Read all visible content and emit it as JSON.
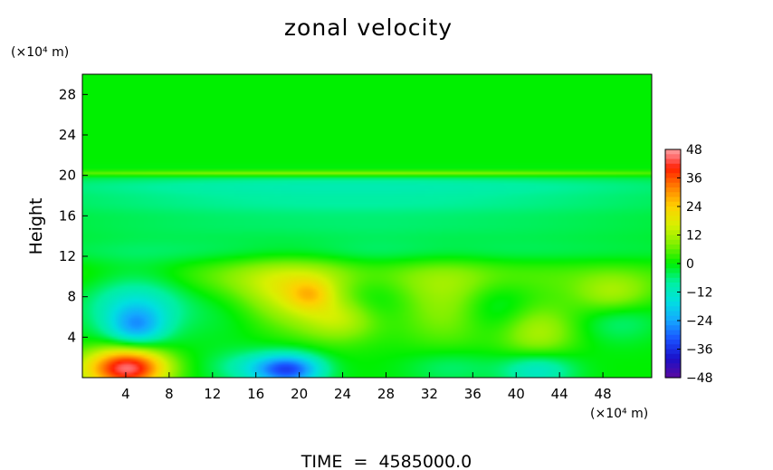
{
  "chart_data": {
    "type": "heatmap",
    "title": "zonal velocity",
    "xlabel": "",
    "ylabel": "Height",
    "x_unit_label": "(×10⁴ m)",
    "y_unit_label": "(×10⁴ m)",
    "footer": "TIME  =  4585000.0",
    "xlim": [
      0,
      52.5
    ],
    "ylim": [
      0,
      30
    ],
    "x_ticks": [
      4,
      8,
      12,
      16,
      20,
      24,
      28,
      32,
      36,
      40,
      44,
      48
    ],
    "y_ticks": [
      4,
      8,
      12,
      16,
      20,
      24,
      28
    ],
    "colorbar": {
      "range": [
        -48,
        48
      ],
      "ticks": [
        48,
        36,
        24,
        12,
        0,
        -12,
        -24,
        -36,
        -48
      ],
      "stops": [
        {
          "value": -48,
          "color": "#5a0aa0"
        },
        {
          "value": -40,
          "color": "#1a10c8"
        },
        {
          "value": -32,
          "color": "#1a50ff"
        },
        {
          "value": -24,
          "color": "#14a8ff"
        },
        {
          "value": -16,
          "color": "#00e0e0"
        },
        {
          "value": -8,
          "color": "#00f0a0"
        },
        {
          "value": 0,
          "color": "#00f000"
        },
        {
          "value": 8,
          "color": "#80f000"
        },
        {
          "value": 16,
          "color": "#d8f000"
        },
        {
          "value": 24,
          "color": "#ffd000"
        },
        {
          "value": 32,
          "color": "#ff8000"
        },
        {
          "value": 40,
          "color": "#ff2000"
        },
        {
          "value": 44,
          "color": "#ff6060"
        },
        {
          "value": 48,
          "color": "#ffa0a0"
        }
      ]
    },
    "field_features": [
      {
        "x": 4.5,
        "y": 1.0,
        "value": 34,
        "sx": 2.4,
        "sy": 1.4
      },
      {
        "x": 2.5,
        "y": 0.8,
        "value": 14,
        "sx": 3.0,
        "sy": 1.5
      },
      {
        "x": 19.0,
        "y": 0.8,
        "value": -32,
        "sx": 2.2,
        "sy": 1.1
      },
      {
        "x": 15.0,
        "y": 1.0,
        "value": -8,
        "sx": 2.5,
        "sy": 1.2
      },
      {
        "x": 42.0,
        "y": 0.8,
        "value": -14,
        "sx": 2.4,
        "sy": 1.2
      },
      {
        "x": 34.0,
        "y": 1.0,
        "value": -6,
        "sx": 3.0,
        "sy": 1.2
      },
      {
        "x": 5.0,
        "y": 7.5,
        "value": -14,
        "sx": 3.5,
        "sy": 2.4
      },
      {
        "x": 5.0,
        "y": 5.0,
        "value": -18,
        "sx": 1.8,
        "sy": 1.4
      },
      {
        "x": 14.0,
        "y": 7.0,
        "value": -6,
        "sx": 3.0,
        "sy": 2.2
      },
      {
        "x": 19.0,
        "y": 8.2,
        "value": 16,
        "sx": 4.5,
        "sy": 2.4
      },
      {
        "x": 21.0,
        "y": 8.2,
        "value": 10,
        "sx": 1.4,
        "sy": 1.0
      },
      {
        "x": 24.0,
        "y": 5.8,
        "value": 12,
        "sx": 2.5,
        "sy": 1.6
      },
      {
        "x": 26.0,
        "y": 8.0,
        "value": -8,
        "sx": 2.8,
        "sy": 2.0
      },
      {
        "x": 34.0,
        "y": 7.0,
        "value": 10,
        "sx": 3.5,
        "sy": 2.8
      },
      {
        "x": 42.0,
        "y": 4.5,
        "value": 12,
        "sx": 2.5,
        "sy": 2.0
      },
      {
        "x": 38.0,
        "y": 7.0,
        "value": -8,
        "sx": 2.5,
        "sy": 2.0
      },
      {
        "x": 49.0,
        "y": 8.0,
        "value": 12,
        "sx": 2.5,
        "sy": 1.5
      },
      {
        "x": 49.5,
        "y": 6.0,
        "value": -8,
        "sx": 2.5,
        "sy": 1.6
      },
      {
        "x": 25.0,
        "y": 10.0,
        "value": 6,
        "sx": 25.0,
        "sy": 1.5
      },
      {
        "x": 25.0,
        "y": 12.5,
        "value": -6,
        "sx": 26.0,
        "sy": 1.0
      },
      {
        "x": 25.0,
        "y": 15.0,
        "value": -5,
        "sx": 26.0,
        "sy": 1.0
      },
      {
        "x": 25.0,
        "y": 17.2,
        "value": -7,
        "sx": 26.0,
        "sy": 0.9
      },
      {
        "x": 25.0,
        "y": 19.0,
        "value": -9,
        "sx": 26.0,
        "sy": 0.8
      },
      {
        "x": 25.0,
        "y": 20.2,
        "value": 12,
        "sx": 26.0,
        "sy": 0.2
      }
    ]
  }
}
